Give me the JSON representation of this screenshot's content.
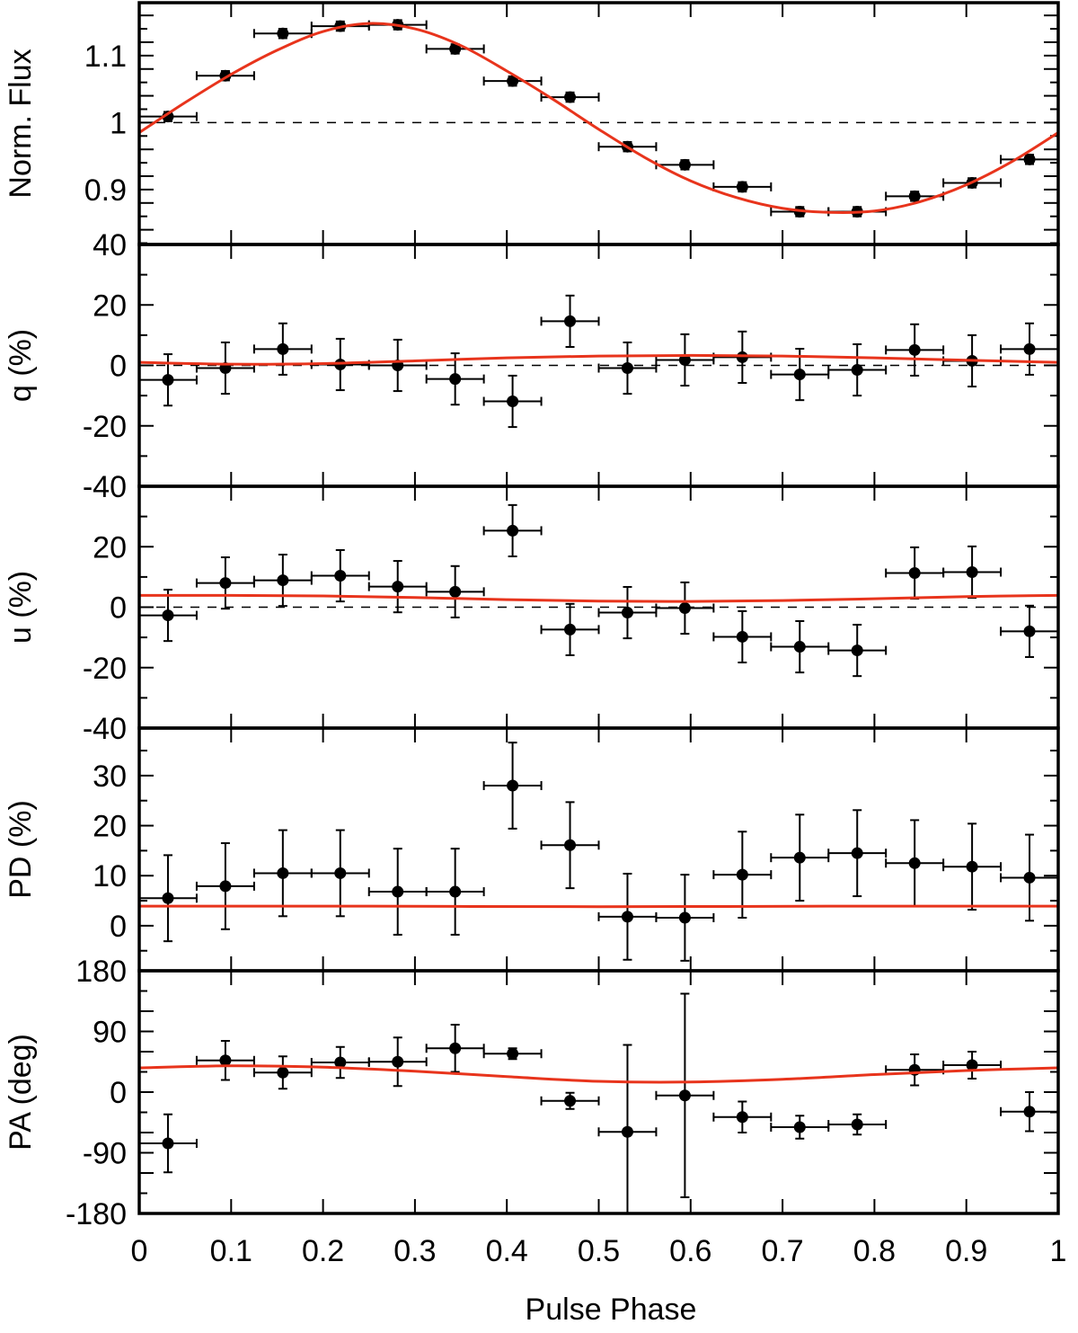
{
  "chart_data": [
    {
      "type": "scatter",
      "ylabel": "Norm. Flux",
      "ylim": [
        0.818,
        1.179
      ],
      "yticks": [
        {
          "v": 0.9,
          "label": "0.9"
        },
        {
          "v": 1,
          "label": "1"
        },
        {
          "v": 1.1,
          "label": "1.1"
        }
      ],
      "yminor": 0.02,
      "reference_line": 1,
      "x": [
        0.03125,
        0.09375,
        0.15625,
        0.21875,
        0.28125,
        0.34375,
        0.40625,
        0.46875,
        0.53125,
        0.59375,
        0.65625,
        0.71875,
        0.78125,
        0.84375,
        0.90625,
        0.96875
      ],
      "xerr": 0.03125,
      "y": [
        1.009,
        1.07,
        1.133,
        1.144,
        1.146,
        1.11,
        1.062,
        1.038,
        0.964,
        0.937,
        0.904,
        0.867,
        0.867,
        0.89,
        0.91,
        0.945
      ],
      "yerr": [
        0.007,
        0.007,
        0.007,
        0.007,
        0.007,
        0.007,
        0.007,
        0.007,
        0.007,
        0.007,
        0.007,
        0.007,
        0.007,
        0.007,
        0.007,
        0.007
      ],
      "model": {
        "x": [
          0,
          0.05,
          0.1,
          0.15,
          0.2,
          0.25,
          0.3,
          0.35,
          0.4,
          0.45,
          0.5,
          0.55,
          0.6,
          0.65,
          0.7,
          0.75,
          0.8,
          0.85,
          0.9,
          0.95,
          1
        ],
        "y": [
          0.985,
          1.03,
          1.072,
          1.108,
          1.136,
          1.148,
          1.14,
          1.115,
          1.077,
          1.035,
          0.99,
          0.948,
          0.913,
          0.888,
          0.872,
          0.866,
          0.868,
          0.882,
          0.907,
          0.942,
          0.985
        ]
      }
    },
    {
      "type": "scatter",
      "ylabel": "q (%)",
      "ylim": [
        -40,
        40
      ],
      "yticks": [
        {
          "v": 40,
          "label": "40"
        },
        {
          "v": 20,
          "label": "20"
        },
        {
          "v": 0,
          "label": "0"
        },
        {
          "v": -20,
          "label": "-20"
        },
        {
          "v": -40,
          "label": "-40"
        }
      ],
      "yminor": 10,
      "reference_line": 0,
      "x": [
        0.03125,
        0.09375,
        0.15625,
        0.21875,
        0.28125,
        0.34375,
        0.40625,
        0.46875,
        0.53125,
        0.59375,
        0.65625,
        0.71875,
        0.78125,
        0.84375,
        0.90625,
        0.96875
      ],
      "xerr": 0.03125,
      "y": [
        -4.8,
        -0.9,
        5.4,
        0.3,
        0,
        -4.5,
        -11.9,
        14.6,
        -0.9,
        1.8,
        2.7,
        -3.0,
        -1.5,
        5.1,
        1.5,
        5.4
      ],
      "yerr": [
        8.5,
        8.5,
        8.5,
        8.5,
        8.5,
        8.5,
        8.5,
        8.5,
        8.5,
        8.5,
        8.5,
        8.5,
        8.5,
        8.5,
        8.5,
        8.5
      ],
      "model": {
        "x": [
          0,
          0.1,
          0.2,
          0.3,
          0.4,
          0.5,
          0.6,
          0.7,
          0.8,
          0.9,
          1
        ],
        "y": [
          1,
          0.4,
          0.6,
          1.5,
          2.5,
          3.1,
          3.3,
          3.1,
          2.5,
          1.7,
          1
        ]
      }
    },
    {
      "type": "scatter",
      "ylabel": "u (%)",
      "ylim": [
        -40,
        40
      ],
      "yticks": [
        {
          "v": 20,
          "label": "20"
        },
        {
          "v": 0,
          "label": "0"
        },
        {
          "v": -20,
          "label": "-20"
        },
        {
          "v": -40,
          "label": "-40"
        }
      ],
      "yminor": 10,
      "reference_line": 0,
      "x": [
        0.03125,
        0.09375,
        0.15625,
        0.21875,
        0.28125,
        0.34375,
        0.40625,
        0.46875,
        0.53125,
        0.59375,
        0.65625,
        0.71875,
        0.78125,
        0.84375,
        0.90625,
        0.96875
      ],
      "xerr": 0.03125,
      "y": [
        -2.7,
        8.0,
        8.9,
        10.4,
        6.8,
        5.1,
        25.3,
        -7.4,
        -1.8,
        -0.3,
        -9.8,
        -13.1,
        -14.3,
        11.3,
        11.6,
        -8.0
      ],
      "yerr": [
        8.5,
        8.5,
        8.5,
        8.5,
        8.5,
        8.5,
        8.5,
        8.5,
        8.5,
        8.5,
        8.5,
        8.5,
        8.5,
        8.5,
        8.5,
        8.5
      ],
      "model": {
        "x": [
          0,
          0.1,
          0.2,
          0.3,
          0.4,
          0.5,
          0.6,
          0.7,
          0.8,
          0.9,
          1
        ],
        "y": [
          3.9,
          3.9,
          3.7,
          3.2,
          2.5,
          2.0,
          1.9,
          2.2,
          2.8,
          3.5,
          3.9
        ]
      }
    },
    {
      "type": "scatter",
      "ylabel": "PD (%)",
      "ylim": [
        -9,
        39.5
      ],
      "yticks": [
        {
          "v": 30,
          "label": "30"
        },
        {
          "v": 20,
          "label": "20"
        },
        {
          "v": 10,
          "label": "10"
        },
        {
          "v": 0,
          "label": "0"
        }
      ],
      "yminor": 5,
      "x": [
        0.03125,
        0.09375,
        0.15625,
        0.21875,
        0.28125,
        0.34375,
        0.40625,
        0.46875,
        0.53125,
        0.59375,
        0.65625,
        0.71875,
        0.78125,
        0.84375,
        0.90625,
        0.96875
      ],
      "xerr": 0.03125,
      "y": [
        5.5,
        7.9,
        10.5,
        10.5,
        6.8,
        6.8,
        28.0,
        16.1,
        1.8,
        1.6,
        10.2,
        13.6,
        14.5,
        12.5,
        11.8,
        9.6
      ],
      "yerr": [
        8.6,
        8.6,
        8.6,
        8.6,
        8.6,
        8.6,
        8.6,
        8.6,
        8.6,
        8.6,
        8.6,
        8.6,
        8.6,
        8.6,
        8.6,
        8.6
      ],
      "model": {
        "x": [
          0,
          0.25,
          0.5,
          0.75,
          1
        ],
        "y": [
          3.9,
          3.9,
          3.8,
          3.9,
          3.9
        ]
      }
    },
    {
      "type": "scatter",
      "ylabel": "PA (deg)",
      "xlabel": "Pulse Phase",
      "ylim": [
        -180,
        180
      ],
      "yticks": [
        {
          "v": 180,
          "label": "180"
        },
        {
          "v": 90,
          "label": "90"
        },
        {
          "v": 0,
          "label": "0"
        },
        {
          "v": -90,
          "label": "-90"
        },
        {
          "v": -180,
          "label": "-180"
        }
      ],
      "yminor": 30,
      "x": [
        0.03125,
        0.09375,
        0.15625,
        0.21875,
        0.28125,
        0.34375,
        0.40625,
        0.46875,
        0.53125,
        0.59375,
        0.65625,
        0.71875,
        0.78125,
        0.84375,
        0.90625,
        0.96875
      ],
      "xerr": 0.03125,
      "y": [
        -76,
        47,
        29,
        44,
        45,
        65,
        57,
        -13,
        -59,
        -5,
        -37,
        -52,
        -48,
        33,
        40,
        -29
      ],
      "yerr": [
        43,
        29,
        24,
        23,
        36,
        35,
        8,
        12,
        129,
        151,
        23,
        17,
        15,
        23,
        20,
        29
      ],
      "model": {
        "x": [
          0,
          0.1,
          0.2,
          0.3,
          0.4,
          0.5,
          0.6,
          0.7,
          0.8,
          0.9,
          1
        ],
        "y": [
          36,
          39,
          37,
          31,
          23,
          16,
          15,
          19,
          26,
          32,
          36
        ]
      }
    }
  ],
  "xaxis": {
    "xlim": [
      0,
      1
    ],
    "ticks": [
      {
        "v": 0,
        "label": "0"
      },
      {
        "v": 0.1,
        "label": "0.1"
      },
      {
        "v": 0.2,
        "label": "0.2"
      },
      {
        "v": 0.3,
        "label": "0.3"
      },
      {
        "v": 0.4,
        "label": "0.4"
      },
      {
        "v": 0.5,
        "label": "0.5"
      },
      {
        "v": 0.6,
        "label": "0.6"
      },
      {
        "v": 0.7,
        "label": "0.7"
      },
      {
        "v": 0.8,
        "label": "0.8"
      },
      {
        "v": 0.9,
        "label": "0.9"
      },
      {
        "v": 1,
        "label": "1"
      }
    ],
    "label": "Pulse Phase"
  },
  "colors": {
    "model": "#e8341c",
    "points": "#000000",
    "reference": "#000000"
  }
}
